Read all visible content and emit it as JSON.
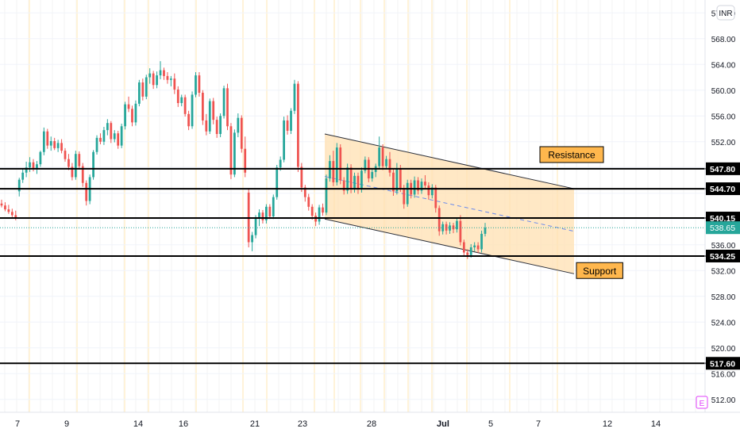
{
  "chart_data": {
    "type": "candlestick",
    "currency_label": "INR",
    "y_axis": {
      "range": [
        510,
        574
      ],
      "ticks": [
        "512.00",
        "516.00",
        "520.00",
        "524.00",
        "528.00",
        "532.00",
        "536.00",
        "552.00",
        "556.00",
        "560.00",
        "564.00",
        "568.00",
        "572.00"
      ]
    },
    "x_axis": {
      "ticks": [
        "7",
        "9",
        "14",
        "16",
        "21",
        "23",
        "28",
        "Jul",
        "5",
        "7",
        "12",
        "14"
      ]
    },
    "horizontal_levels": [
      {
        "label": "547.80",
        "value": 547.8
      },
      {
        "label": "544.70",
        "value": 544.7
      },
      {
        "label": "540.15",
        "value": 540.15
      },
      {
        "label": "534.25",
        "value": 534.25
      },
      {
        "label": "517.60",
        "value": 517.6
      }
    ],
    "last_price": {
      "label": "538.65",
      "value": 538.65,
      "color": "#26a69a"
    },
    "annotations": [
      {
        "text": "Resistance",
        "value": 550.0
      },
      {
        "text": "Support",
        "value": 532.0
      }
    ],
    "channel": {
      "upper_start": 553.2,
      "upper_end": 544.7,
      "lower_start": 540.0,
      "lower_end": 531.5,
      "fill": "#ffe0b2"
    },
    "candles": [
      {
        "o": 542.4,
        "h": 543.0,
        "l": 541.8,
        "c": 542.1
      },
      {
        "o": 542.1,
        "h": 542.6,
        "l": 541.2,
        "c": 541.5
      },
      {
        "o": 541.5,
        "h": 542.2,
        "l": 540.8,
        "c": 541.1
      },
      {
        "o": 541.1,
        "h": 541.6,
        "l": 540.3,
        "c": 540.6
      },
      {
        "o": 540.6,
        "h": 541.3,
        "l": 539.8,
        "c": 540.2
      },
      {
        "o": 544.3,
        "h": 546.4,
        "l": 543.5,
        "c": 546.1
      },
      {
        "o": 546.1,
        "h": 547.8,
        "l": 545.6,
        "c": 547.2
      },
      {
        "o": 547.2,
        "h": 548.9,
        "l": 546.5,
        "c": 548.0
      },
      {
        "o": 548.0,
        "h": 549.6,
        "l": 547.3,
        "c": 548.8
      },
      {
        "o": 548.8,
        "h": 549.3,
        "l": 547.4,
        "c": 547.9
      },
      {
        "o": 547.9,
        "h": 549.0,
        "l": 547.0,
        "c": 548.5
      },
      {
        "o": 548.5,
        "h": 550.6,
        "l": 548.1,
        "c": 550.4
      },
      {
        "o": 550.4,
        "h": 554.2,
        "l": 549.9,
        "c": 553.6
      },
      {
        "o": 553.6,
        "h": 554.0,
        "l": 550.9,
        "c": 551.4
      },
      {
        "o": 551.4,
        "h": 552.8,
        "l": 550.6,
        "c": 552.1
      },
      {
        "o": 552.1,
        "h": 552.6,
        "l": 550.7,
        "c": 551.0
      },
      {
        "o": 551.0,
        "h": 552.3,
        "l": 550.4,
        "c": 551.8
      },
      {
        "o": 551.8,
        "h": 552.4,
        "l": 550.2,
        "c": 550.6
      },
      {
        "o": 550.6,
        "h": 551.0,
        "l": 548.9,
        "c": 549.3
      },
      {
        "o": 549.3,
        "h": 550.1,
        "l": 547.6,
        "c": 548.1
      },
      {
        "o": 548.1,
        "h": 548.7,
        "l": 546.0,
        "c": 546.5
      },
      {
        "o": 546.5,
        "h": 550.6,
        "l": 546.1,
        "c": 550.1
      },
      {
        "o": 550.1,
        "h": 550.5,
        "l": 547.7,
        "c": 548.2
      },
      {
        "o": 548.2,
        "h": 548.7,
        "l": 545.0,
        "c": 545.6
      },
      {
        "o": 545.6,
        "h": 546.0,
        "l": 542.1,
        "c": 542.8
      },
      {
        "o": 542.8,
        "h": 546.9,
        "l": 542.3,
        "c": 546.5
      },
      {
        "o": 546.5,
        "h": 550.7,
        "l": 546.1,
        "c": 550.4
      },
      {
        "o": 550.4,
        "h": 553.0,
        "l": 550.0,
        "c": 552.6
      },
      {
        "o": 552.6,
        "h": 553.3,
        "l": 551.6,
        "c": 552.0
      },
      {
        "o": 552.0,
        "h": 554.3,
        "l": 551.5,
        "c": 553.8
      },
      {
        "o": 553.8,
        "h": 555.5,
        "l": 553.0,
        "c": 554.9
      },
      {
        "o": 554.9,
        "h": 555.2,
        "l": 551.8,
        "c": 552.4
      },
      {
        "o": 552.4,
        "h": 553.8,
        "l": 551.9,
        "c": 553.3
      },
      {
        "o": 553.3,
        "h": 553.7,
        "l": 550.9,
        "c": 551.4
      },
      {
        "o": 551.4,
        "h": 554.8,
        "l": 551.0,
        "c": 554.4
      },
      {
        "o": 554.4,
        "h": 558.2,
        "l": 553.9,
        "c": 557.8
      },
      {
        "o": 557.8,
        "h": 559.0,
        "l": 556.6,
        "c": 557.1
      },
      {
        "o": 557.1,
        "h": 557.6,
        "l": 554.4,
        "c": 555.0
      },
      {
        "o": 555.0,
        "h": 558.4,
        "l": 554.5,
        "c": 557.9
      },
      {
        "o": 557.9,
        "h": 561.6,
        "l": 557.5,
        "c": 561.2
      },
      {
        "o": 561.2,
        "h": 561.8,
        "l": 558.4,
        "c": 559.0
      },
      {
        "o": 559.0,
        "h": 562.4,
        "l": 558.6,
        "c": 562.0
      },
      {
        "o": 562.0,
        "h": 563.4,
        "l": 561.0,
        "c": 562.6
      },
      {
        "o": 562.6,
        "h": 563.0,
        "l": 560.2,
        "c": 560.8
      },
      {
        "o": 560.8,
        "h": 562.9,
        "l": 560.3,
        "c": 562.3
      },
      {
        "o": 562.3,
        "h": 564.5,
        "l": 561.7,
        "c": 563.1
      },
      {
        "o": 563.1,
        "h": 563.5,
        "l": 561.6,
        "c": 562.2
      },
      {
        "o": 562.2,
        "h": 562.8,
        "l": 561.0,
        "c": 561.6
      },
      {
        "o": 561.6,
        "h": 562.2,
        "l": 560.6,
        "c": 561.8
      },
      {
        "o": 561.8,
        "h": 562.6,
        "l": 559.4,
        "c": 560.1
      },
      {
        "o": 560.1,
        "h": 560.6,
        "l": 557.4,
        "c": 558.0
      },
      {
        "o": 558.0,
        "h": 559.3,
        "l": 557.5,
        "c": 558.9
      },
      {
        "o": 558.9,
        "h": 559.3,
        "l": 555.9,
        "c": 556.3
      },
      {
        "o": 556.3,
        "h": 556.8,
        "l": 553.8,
        "c": 554.4
      },
      {
        "o": 554.4,
        "h": 559.8,
        "l": 554.0,
        "c": 559.3
      },
      {
        "o": 559.3,
        "h": 562.8,
        "l": 558.9,
        "c": 562.3
      },
      {
        "o": 562.3,
        "h": 562.8,
        "l": 559.0,
        "c": 559.6
      },
      {
        "o": 559.6,
        "h": 560.0,
        "l": 554.6,
        "c": 555.3
      },
      {
        "o": 555.3,
        "h": 556.3,
        "l": 553.0,
        "c": 553.6
      },
      {
        "o": 553.6,
        "h": 558.7,
        "l": 553.2,
        "c": 558.3
      },
      {
        "o": 558.3,
        "h": 558.8,
        "l": 554.7,
        "c": 555.4
      },
      {
        "o": 555.4,
        "h": 555.9,
        "l": 552.6,
        "c": 553.2
      },
      {
        "o": 553.2,
        "h": 556.4,
        "l": 552.7,
        "c": 556.0
      },
      {
        "o": 556.0,
        "h": 560.7,
        "l": 555.6,
        "c": 560.3
      },
      {
        "o": 560.3,
        "h": 561.0,
        "l": 553.8,
        "c": 554.4
      },
      {
        "o": 554.4,
        "h": 554.9,
        "l": 546.2,
        "c": 546.9
      },
      {
        "o": 546.9,
        "h": 553.9,
        "l": 546.5,
        "c": 553.4
      },
      {
        "o": 553.4,
        "h": 556.4,
        "l": 552.7,
        "c": 555.7
      },
      {
        "o": 555.7,
        "h": 556.1,
        "l": 550.3,
        "c": 550.9
      },
      {
        "o": 550.9,
        "h": 552.8,
        "l": 546.5,
        "c": 547.2
      },
      {
        "o": 544.1,
        "h": 544.8,
        "l": 535.6,
        "c": 536.4
      },
      {
        "o": 536.4,
        "h": 538.0,
        "l": 535.0,
        "c": 537.5
      },
      {
        "o": 537.5,
        "h": 540.6,
        "l": 537.0,
        "c": 540.1
      },
      {
        "o": 540.1,
        "h": 541.5,
        "l": 538.9,
        "c": 541.0
      },
      {
        "o": 541.0,
        "h": 541.4,
        "l": 539.3,
        "c": 539.8
      },
      {
        "o": 539.8,
        "h": 542.3,
        "l": 539.3,
        "c": 541.9
      },
      {
        "o": 541.9,
        "h": 542.3,
        "l": 540.0,
        "c": 540.4
      },
      {
        "o": 540.4,
        "h": 543.8,
        "l": 540.0,
        "c": 543.4
      },
      {
        "o": 543.4,
        "h": 548.4,
        "l": 543.0,
        "c": 548.0
      },
      {
        "o": 548.0,
        "h": 549.7,
        "l": 547.5,
        "c": 549.2
      },
      {
        "o": 549.2,
        "h": 555.9,
        "l": 548.8,
        "c": 555.3
      },
      {
        "o": 555.3,
        "h": 556.1,
        "l": 553.1,
        "c": 553.7
      },
      {
        "o": 553.7,
        "h": 557.2,
        "l": 553.2,
        "c": 556.8
      },
      {
        "o": 556.8,
        "h": 561.6,
        "l": 556.3,
        "c": 561.0
      },
      {
        "o": 561.0,
        "h": 561.4,
        "l": 547.3,
        "c": 548.1
      },
      {
        "o": 548.1,
        "h": 548.7,
        "l": 544.2,
        "c": 544.9
      },
      {
        "o": 544.9,
        "h": 545.3,
        "l": 542.7,
        "c": 543.4
      },
      {
        "o": 543.4,
        "h": 543.9,
        "l": 541.3,
        "c": 541.9
      },
      {
        "o": 541.9,
        "h": 542.3,
        "l": 539.9,
        "c": 540.5
      },
      {
        "o": 540.5,
        "h": 541.0,
        "l": 538.9,
        "c": 539.6
      },
      {
        "o": 539.6,
        "h": 542.2,
        "l": 539.1,
        "c": 541.8
      },
      {
        "o": 541.8,
        "h": 542.4,
        "l": 540.5,
        "c": 541.0
      },
      {
        "o": 541.0,
        "h": 546.9,
        "l": 540.6,
        "c": 546.3
      },
      {
        "o": 546.3,
        "h": 549.9,
        "l": 545.8,
        "c": 549.0
      },
      {
        "o": 549.0,
        "h": 550.6,
        "l": 545.1,
        "c": 545.7
      },
      {
        "o": 545.7,
        "h": 551.8,
        "l": 545.2,
        "c": 551.1
      },
      {
        "o": 551.1,
        "h": 551.6,
        "l": 545.4,
        "c": 546.0
      },
      {
        "o": 546.0,
        "h": 546.5,
        "l": 543.8,
        "c": 544.4
      },
      {
        "o": 544.4,
        "h": 548.6,
        "l": 543.9,
        "c": 548.0
      },
      {
        "o": 548.0,
        "h": 548.5,
        "l": 544.0,
        "c": 544.6
      },
      {
        "o": 544.6,
        "h": 547.2,
        "l": 544.1,
        "c": 546.7
      },
      {
        "o": 546.7,
        "h": 547.2,
        "l": 543.9,
        "c": 544.6
      },
      {
        "o": 544.6,
        "h": 548.0,
        "l": 544.1,
        "c": 547.5
      },
      {
        "o": 547.5,
        "h": 549.7,
        "l": 547.1,
        "c": 549.2
      },
      {
        "o": 549.2,
        "h": 549.6,
        "l": 545.7,
        "c": 546.3
      },
      {
        "o": 546.3,
        "h": 547.8,
        "l": 545.8,
        "c": 547.3
      },
      {
        "o": 547.3,
        "h": 548.6,
        "l": 546.5,
        "c": 548.2
      },
      {
        "o": 548.2,
        "h": 552.8,
        "l": 547.7,
        "c": 551.1
      },
      {
        "o": 551.1,
        "h": 551.6,
        "l": 547.6,
        "c": 548.2
      },
      {
        "o": 548.2,
        "h": 549.8,
        "l": 547.7,
        "c": 549.3
      },
      {
        "o": 549.3,
        "h": 550.4,
        "l": 546.6,
        "c": 547.2
      },
      {
        "o": 547.2,
        "h": 547.7,
        "l": 543.6,
        "c": 544.3
      },
      {
        "o": 544.3,
        "h": 548.7,
        "l": 543.8,
        "c": 547.9
      },
      {
        "o": 547.9,
        "h": 548.4,
        "l": 544.2,
        "c": 544.8
      },
      {
        "o": 544.8,
        "h": 545.3,
        "l": 541.6,
        "c": 542.3
      },
      {
        "o": 542.3,
        "h": 546.1,
        "l": 541.9,
        "c": 545.6
      },
      {
        "o": 545.6,
        "h": 546.1,
        "l": 543.2,
        "c": 543.8
      },
      {
        "o": 543.8,
        "h": 546.6,
        "l": 543.3,
        "c": 546.0
      },
      {
        "o": 546.0,
        "h": 546.5,
        "l": 543.8,
        "c": 544.4
      },
      {
        "o": 544.4,
        "h": 546.3,
        "l": 543.9,
        "c": 545.8
      },
      {
        "o": 545.8,
        "h": 546.8,
        "l": 544.6,
        "c": 545.2
      },
      {
        "o": 545.2,
        "h": 545.7,
        "l": 543.0,
        "c": 543.7
      },
      {
        "o": 543.7,
        "h": 545.4,
        "l": 543.2,
        "c": 544.9
      },
      {
        "o": 544.9,
        "h": 545.3,
        "l": 541.0,
        "c": 541.7
      },
      {
        "o": 541.7,
        "h": 542.1,
        "l": 537.4,
        "c": 538.1
      },
      {
        "o": 538.1,
        "h": 539.6,
        "l": 537.6,
        "c": 539.2
      },
      {
        "o": 539.2,
        "h": 539.6,
        "l": 537.6,
        "c": 538.2
      },
      {
        "o": 538.2,
        "h": 539.5,
        "l": 537.7,
        "c": 539.0
      },
      {
        "o": 539.0,
        "h": 539.4,
        "l": 537.8,
        "c": 538.4
      },
      {
        "o": 538.4,
        "h": 540.2,
        "l": 537.9,
        "c": 539.7
      },
      {
        "o": 539.7,
        "h": 540.6,
        "l": 535.9,
        "c": 536.4
      },
      {
        "o": 536.4,
        "h": 536.8,
        "l": 534.2,
        "c": 534.8
      },
      {
        "o": 534.8,
        "h": 535.3,
        "l": 533.8,
        "c": 534.4
      },
      {
        "o": 534.4,
        "h": 536.1,
        "l": 534.0,
        "c": 535.6
      },
      {
        "o": 535.6,
        "h": 536.4,
        "l": 535.0,
        "c": 535.9
      },
      {
        "o": 535.9,
        "h": 536.4,
        "l": 534.7,
        "c": 535.3
      },
      {
        "o": 535.3,
        "h": 538.2,
        "l": 534.8,
        "c": 537.7
      },
      {
        "o": 537.7,
        "h": 539.4,
        "l": 537.3,
        "c": 538.65
      }
    ]
  }
}
